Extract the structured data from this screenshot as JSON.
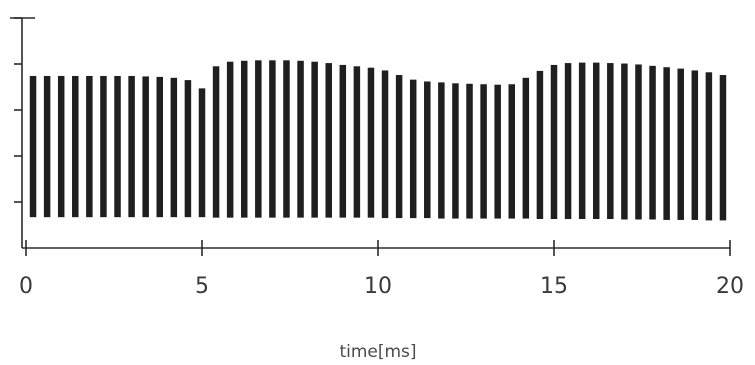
{
  "chart_data": {
    "type": "bar",
    "title": "",
    "xlabel": "time[ms]",
    "ylabel": "",
    "xlim": [
      0,
      20
    ],
    "x_ticks": [
      {
        "value": 0,
        "label": "0"
      },
      {
        "value": 5,
        "label": "5"
      },
      {
        "value": 10,
        "label": "10"
      },
      {
        "value": 15,
        "label": "15"
      },
      {
        "value": 20,
        "label": "20"
      }
    ],
    "ylim": [
      0,
      5
    ],
    "y_ticks_unlabeled": [
      1,
      2,
      3,
      4,
      5
    ],
    "grid": false,
    "bar_color": "#1f1f1f",
    "series": [
      {
        "x": [
          0.2,
          0.6,
          1.0,
          1.4,
          1.8,
          2.2,
          2.6,
          3.0,
          3.4,
          3.8,
          4.2,
          4.6,
          5.0,
          5.4,
          5.8,
          6.2,
          6.6,
          7.0,
          7.4,
          7.8,
          8.2,
          8.6,
          9.0,
          9.4,
          9.8,
          10.2,
          10.6,
          11.0,
          11.4,
          11.8,
          12.2,
          12.6,
          13.0,
          13.4,
          13.8,
          14.2,
          14.6,
          15.0,
          15.4,
          15.8,
          16.2,
          16.6,
          17.0,
          17.4,
          17.8,
          18.2,
          18.6,
          19.0,
          19.4,
          19.8
        ],
        "top": [
          3.74,
          3.74,
          3.74,
          3.74,
          3.74,
          3.74,
          3.74,
          3.74,
          3.73,
          3.72,
          3.7,
          3.65,
          3.47,
          3.95,
          4.05,
          4.07,
          4.08,
          4.08,
          4.08,
          4.07,
          4.05,
          4.02,
          3.98,
          3.95,
          3.92,
          3.86,
          3.76,
          3.66,
          3.62,
          3.6,
          3.58,
          3.57,
          3.56,
          3.55,
          3.56,
          3.7,
          3.85,
          3.98,
          4.02,
          4.03,
          4.03,
          4.02,
          4.01,
          3.99,
          3.96,
          3.93,
          3.9,
          3.86,
          3.82,
          3.76
        ],
        "bottom": [
          0.67,
          0.67,
          0.67,
          0.67,
          0.67,
          0.67,
          0.67,
          0.67,
          0.67,
          0.67,
          0.67,
          0.67,
          0.67,
          0.66,
          0.66,
          0.66,
          0.66,
          0.66,
          0.66,
          0.66,
          0.66,
          0.66,
          0.66,
          0.66,
          0.66,
          0.65,
          0.65,
          0.65,
          0.65,
          0.64,
          0.64,
          0.64,
          0.64,
          0.64,
          0.64,
          0.64,
          0.63,
          0.63,
          0.63,
          0.63,
          0.63,
          0.63,
          0.62,
          0.62,
          0.62,
          0.61,
          0.61,
          0.61,
          0.6,
          0.6
        ]
      }
    ]
  }
}
